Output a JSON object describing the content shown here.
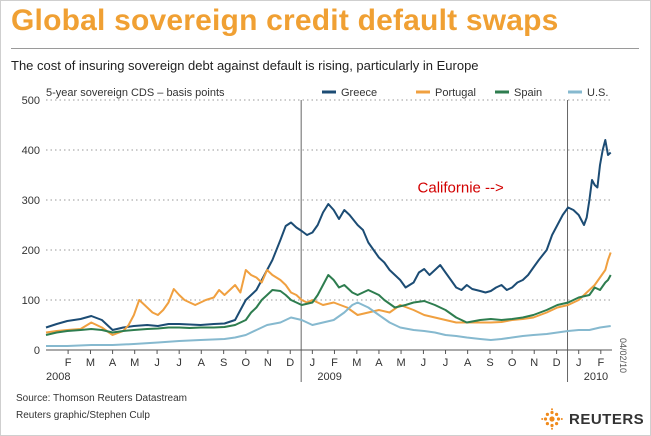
{
  "header": {
    "title": "Global sovereign credit default swaps",
    "subtitle": "The cost of insuring sovereign debt against default is rising, particularly in Europe"
  },
  "footer": {
    "source": "Source: Thomson Reuters Datastream",
    "credit": "Reuters graphic/Stephen Culp",
    "date_stamp": "04/02/10",
    "logo_text": "REUTERS"
  },
  "colors": {
    "Greece": "#1c4c74",
    "Portugal": "#f0a040",
    "Spain": "#2e7d4f",
    "U.S.": "#86b9cf",
    "title": "#f0a033",
    "annotation": "#d20000"
  },
  "chart_data": {
    "type": "line",
    "unit_label": "5-year sovereign CDS – basis points",
    "ylim": [
      0,
      500
    ],
    "yticks": [
      0,
      100,
      200,
      300,
      400,
      500
    ],
    "xlim": [
      2008.0,
      2010.125
    ],
    "month_ticks": [
      {
        "label": "F",
        "t": 2008.083
      },
      {
        "label": "M",
        "t": 2008.167
      },
      {
        "label": "A",
        "t": 2008.25
      },
      {
        "label": "M",
        "t": 2008.333
      },
      {
        "label": "J",
        "t": 2008.417
      },
      {
        "label": "J",
        "t": 2008.5
      },
      {
        "label": "A",
        "t": 2008.583
      },
      {
        "label": "S",
        "t": 2008.667
      },
      {
        "label": "O",
        "t": 2008.75
      },
      {
        "label": "N",
        "t": 2008.833
      },
      {
        "label": "D",
        "t": 2008.917
      },
      {
        "label": "J",
        "t": 2009.0
      },
      {
        "label": "F",
        "t": 2009.083
      },
      {
        "label": "M",
        "t": 2009.167
      },
      {
        "label": "A",
        "t": 2009.25
      },
      {
        "label": "M",
        "t": 2009.333
      },
      {
        "label": "J",
        "t": 2009.417
      },
      {
        "label": "J",
        "t": 2009.5
      },
      {
        "label": "A",
        "t": 2009.583
      },
      {
        "label": "S",
        "t": 2009.667
      },
      {
        "label": "O",
        "t": 2009.75
      },
      {
        "label": "N",
        "t": 2009.833
      },
      {
        "label": "D",
        "t": 2009.917
      },
      {
        "label": "J",
        "t": 2010.0
      },
      {
        "label": "F",
        "t": 2010.083
      }
    ],
    "year_labels": [
      {
        "label": "2008",
        "t": 2008.0
      },
      {
        "label": "2009",
        "t": 2009.0
      },
      {
        "label": "2010",
        "t": 2010.0
      }
    ],
    "year_dividers": [
      2008.958,
      2009.958
    ],
    "grid": "horizontal dotted",
    "legend_position": "top-right",
    "annotations": [
      {
        "text": "Californie -->",
        "t": 2009.5,
        "y": 255
      }
    ],
    "series": [
      {
        "name": "Greece",
        "points": [
          [
            2008.0,
            45
          ],
          [
            2008.04,
            52
          ],
          [
            2008.08,
            58
          ],
          [
            2008.13,
            62
          ],
          [
            2008.17,
            68
          ],
          [
            2008.21,
            60
          ],
          [
            2008.25,
            40
          ],
          [
            2008.29,
            45
          ],
          [
            2008.33,
            48
          ],
          [
            2008.38,
            50
          ],
          [
            2008.42,
            48
          ],
          [
            2008.46,
            52
          ],
          [
            2008.5,
            52
          ],
          [
            2008.54,
            51
          ],
          [
            2008.58,
            50
          ],
          [
            2008.63,
            52
          ],
          [
            2008.67,
            53
          ],
          [
            2008.71,
            60
          ],
          [
            2008.73,
            80
          ],
          [
            2008.75,
            100
          ],
          [
            2008.79,
            120
          ],
          [
            2008.83,
            160
          ],
          [
            2008.85,
            180
          ],
          [
            2008.88,
            220
          ],
          [
            2008.9,
            248
          ],
          [
            2008.92,
            255
          ],
          [
            2008.94,
            245
          ],
          [
            2008.96,
            238
          ],
          [
            2008.98,
            230
          ],
          [
            2009.0,
            235
          ],
          [
            2009.02,
            250
          ],
          [
            2009.04,
            275
          ],
          [
            2009.06,
            292
          ],
          [
            2009.08,
            280
          ],
          [
            2009.1,
            262
          ],
          [
            2009.12,
            280
          ],
          [
            2009.14,
            270
          ],
          [
            2009.17,
            250
          ],
          [
            2009.19,
            240
          ],
          [
            2009.21,
            215
          ],
          [
            2009.23,
            200
          ],
          [
            2009.25,
            185
          ],
          [
            2009.27,
            175
          ],
          [
            2009.29,
            160
          ],
          [
            2009.31,
            150
          ],
          [
            2009.33,
            140
          ],
          [
            2009.35,
            125
          ],
          [
            2009.38,
            135
          ],
          [
            2009.4,
            155
          ],
          [
            2009.42,
            162
          ],
          [
            2009.44,
            150
          ],
          [
            2009.46,
            160
          ],
          [
            2009.48,
            170
          ],
          [
            2009.5,
            155
          ],
          [
            2009.52,
            140
          ],
          [
            2009.54,
            125
          ],
          [
            2009.56,
            120
          ],
          [
            2009.58,
            130
          ],
          [
            2009.6,
            122
          ],
          [
            2009.63,
            118
          ],
          [
            2009.65,
            115
          ],
          [
            2009.67,
            118
          ],
          [
            2009.69,
            125
          ],
          [
            2009.71,
            130
          ],
          [
            2009.73,
            120
          ],
          [
            2009.75,
            125
          ],
          [
            2009.77,
            135
          ],
          [
            2009.79,
            140
          ],
          [
            2009.81,
            150
          ],
          [
            2009.83,
            165
          ],
          [
            2009.85,
            180
          ],
          [
            2009.88,
            200
          ],
          [
            2009.9,
            230
          ],
          [
            2009.92,
            250
          ],
          [
            2009.94,
            270
          ],
          [
            2009.96,
            285
          ],
          [
            2009.98,
            280
          ],
          [
            2010.0,
            270
          ],
          [
            2010.02,
            250
          ],
          [
            2010.03,
            265
          ],
          [
            2010.04,
            300
          ],
          [
            2010.05,
            340
          ],
          [
            2010.06,
            330
          ],
          [
            2010.07,
            325
          ],
          [
            2010.08,
            370
          ],
          [
            2010.09,
            400
          ],
          [
            2010.1,
            420
          ],
          [
            2010.11,
            390
          ],
          [
            2010.12,
            395
          ]
        ]
      },
      {
        "name": "Portugal",
        "points": [
          [
            2008.0,
            35
          ],
          [
            2008.04,
            38
          ],
          [
            2008.08,
            40
          ],
          [
            2008.13,
            42
          ],
          [
            2008.17,
            55
          ],
          [
            2008.21,
            45
          ],
          [
            2008.25,
            30
          ],
          [
            2008.29,
            38
          ],
          [
            2008.31,
            50
          ],
          [
            2008.33,
            70
          ],
          [
            2008.35,
            100
          ],
          [
            2008.37,
            90
          ],
          [
            2008.4,
            75
          ],
          [
            2008.42,
            70
          ],
          [
            2008.44,
            80
          ],
          [
            2008.46,
            95
          ],
          [
            2008.48,
            122
          ],
          [
            2008.5,
            110
          ],
          [
            2008.52,
            100
          ],
          [
            2008.54,
            95
          ],
          [
            2008.56,
            90
          ],
          [
            2008.58,
            95
          ],
          [
            2008.6,
            100
          ],
          [
            2008.63,
            105
          ],
          [
            2008.65,
            120
          ],
          [
            2008.67,
            110
          ],
          [
            2008.69,
            120
          ],
          [
            2008.71,
            130
          ],
          [
            2008.73,
            115
          ],
          [
            2008.75,
            160
          ],
          [
            2008.77,
            150
          ],
          [
            2008.79,
            145
          ],
          [
            2008.81,
            135
          ],
          [
            2008.83,
            160
          ],
          [
            2008.85,
            150
          ],
          [
            2008.88,
            140
          ],
          [
            2008.9,
            130
          ],
          [
            2008.92,
            115
          ],
          [
            2008.94,
            110
          ],
          [
            2008.96,
            100
          ],
          [
            2008.98,
            95
          ],
          [
            2009.0,
            100
          ],
          [
            2009.04,
            90
          ],
          [
            2009.08,
            95
          ],
          [
            2009.13,
            85
          ],
          [
            2009.17,
            70
          ],
          [
            2009.21,
            75
          ],
          [
            2009.25,
            80
          ],
          [
            2009.29,
            75
          ],
          [
            2009.33,
            90
          ],
          [
            2009.38,
            80
          ],
          [
            2009.42,
            70
          ],
          [
            2009.46,
            65
          ],
          [
            2009.5,
            60
          ],
          [
            2009.54,
            55
          ],
          [
            2009.58,
            55
          ],
          [
            2009.63,
            55
          ],
          [
            2009.67,
            55
          ],
          [
            2009.71,
            56
          ],
          [
            2009.75,
            60
          ],
          [
            2009.79,
            62
          ],
          [
            2009.83,
            65
          ],
          [
            2009.88,
            75
          ],
          [
            2009.92,
            85
          ],
          [
            2009.96,
            90
          ],
          [
            2010.0,
            100
          ],
          [
            2010.04,
            120
          ],
          [
            2010.06,
            130
          ],
          [
            2010.08,
            145
          ],
          [
            2010.1,
            160
          ],
          [
            2010.11,
            180
          ],
          [
            2010.12,
            195
          ]
        ]
      },
      {
        "name": "Spain",
        "points": [
          [
            2008.0,
            30
          ],
          [
            2008.04,
            35
          ],
          [
            2008.08,
            38
          ],
          [
            2008.13,
            40
          ],
          [
            2008.17,
            42
          ],
          [
            2008.21,
            40
          ],
          [
            2008.25,
            35
          ],
          [
            2008.29,
            38
          ],
          [
            2008.33,
            40
          ],
          [
            2008.38,
            42
          ],
          [
            2008.42,
            43
          ],
          [
            2008.46,
            45
          ],
          [
            2008.5,
            45
          ],
          [
            2008.54,
            44
          ],
          [
            2008.58,
            45
          ],
          [
            2008.63,
            45
          ],
          [
            2008.67,
            46
          ],
          [
            2008.71,
            50
          ],
          [
            2008.75,
            60
          ],
          [
            2008.77,
            75
          ],
          [
            2008.79,
            85
          ],
          [
            2008.81,
            100
          ],
          [
            2008.83,
            110
          ],
          [
            2008.85,
            120
          ],
          [
            2008.88,
            118
          ],
          [
            2008.9,
            110
          ],
          [
            2008.92,
            100
          ],
          [
            2008.94,
            95
          ],
          [
            2008.96,
            90
          ],
          [
            2009.0,
            95
          ],
          [
            2009.02,
            110
          ],
          [
            2009.04,
            130
          ],
          [
            2009.06,
            150
          ],
          [
            2009.08,
            140
          ],
          [
            2009.1,
            125
          ],
          [
            2009.12,
            130
          ],
          [
            2009.15,
            115
          ],
          [
            2009.17,
            110
          ],
          [
            2009.21,
            120
          ],
          [
            2009.25,
            110
          ],
          [
            2009.27,
            100
          ],
          [
            2009.31,
            85
          ],
          [
            2009.35,
            90
          ],
          [
            2009.38,
            95
          ],
          [
            2009.42,
            98
          ],
          [
            2009.46,
            90
          ],
          [
            2009.5,
            80
          ],
          [
            2009.54,
            65
          ],
          [
            2009.58,
            55
          ],
          [
            2009.63,
            60
          ],
          [
            2009.67,
            62
          ],
          [
            2009.71,
            60
          ],
          [
            2009.75,
            62
          ],
          [
            2009.79,
            65
          ],
          [
            2009.83,
            70
          ],
          [
            2009.88,
            80
          ],
          [
            2009.92,
            90
          ],
          [
            2009.96,
            95
          ],
          [
            2010.0,
            105
          ],
          [
            2010.04,
            110
          ],
          [
            2010.06,
            125
          ],
          [
            2010.08,
            120
          ],
          [
            2010.1,
            135
          ],
          [
            2010.11,
            140
          ],
          [
            2010.12,
            150
          ]
        ]
      },
      {
        "name": "U.S.",
        "points": [
          [
            2008.0,
            8
          ],
          [
            2008.08,
            8
          ],
          [
            2008.17,
            10
          ],
          [
            2008.25,
            10
          ],
          [
            2008.33,
            12
          ],
          [
            2008.42,
            15
          ],
          [
            2008.5,
            18
          ],
          [
            2008.58,
            20
          ],
          [
            2008.67,
            22
          ],
          [
            2008.71,
            25
          ],
          [
            2008.75,
            30
          ],
          [
            2008.79,
            40
          ],
          [
            2008.83,
            50
          ],
          [
            2008.88,
            55
          ],
          [
            2008.9,
            60
          ],
          [
            2008.92,
            65
          ],
          [
            2008.96,
            60
          ],
          [
            2009.0,
            50
          ],
          [
            2009.04,
            55
          ],
          [
            2009.08,
            60
          ],
          [
            2009.12,
            75
          ],
          [
            2009.15,
            90
          ],
          [
            2009.17,
            95
          ],
          [
            2009.21,
            85
          ],
          [
            2009.25,
            70
          ],
          [
            2009.29,
            55
          ],
          [
            2009.33,
            45
          ],
          [
            2009.38,
            40
          ],
          [
            2009.42,
            38
          ],
          [
            2009.46,
            35
          ],
          [
            2009.5,
            30
          ],
          [
            2009.54,
            28
          ],
          [
            2009.58,
            25
          ],
          [
            2009.63,
            22
          ],
          [
            2009.67,
            20
          ],
          [
            2009.71,
            22
          ],
          [
            2009.75,
            25
          ],
          [
            2009.79,
            28
          ],
          [
            2009.83,
            30
          ],
          [
            2009.88,
            32
          ],
          [
            2009.92,
            35
          ],
          [
            2009.96,
            38
          ],
          [
            2010.0,
            40
          ],
          [
            2010.04,
            40
          ],
          [
            2010.08,
            45
          ],
          [
            2010.12,
            48
          ]
        ]
      }
    ]
  }
}
